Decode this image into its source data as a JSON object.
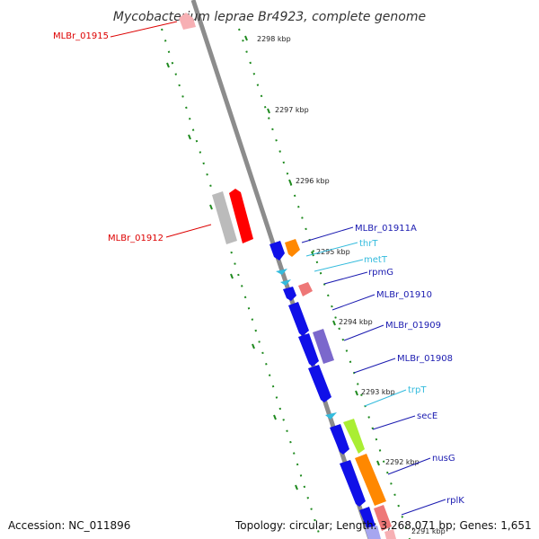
{
  "title": "Mycobacterium leprae Br4923, complete genome",
  "footer": {
    "accession_text": "Accession: NC_011896",
    "summary_text": "Topology: circular; Length: 3,268,071 bp; Genes: 1,651"
  },
  "colors": {
    "backbone": "#8c8c8c",
    "ticks": "#1f8a1f",
    "cds_forward": "#1010e8",
    "label_blue": "#1a1ab0",
    "label_cyan": "#33bbdd",
    "label_red": "#dd0000",
    "rna": "#ff8800",
    "pseudogene": "#ee7777",
    "selected": "#ff0000",
    "neighbor": "#bbbbbb",
    "lilac": "#7b68cc",
    "lime": "#aaee33"
  },
  "kbp_labels": [
    "2298 kbp",
    "2297 kbp",
    "2296 kbp",
    "2295 kbp",
    "2294 kbp",
    "2293 kbp",
    "2292 kbp",
    "2291 kbp"
  ],
  "gene_labels": [
    {
      "name": "MLBr_01915",
      "color": "label_red"
    },
    {
      "name": "MLBr_01912",
      "color": "label_red"
    },
    {
      "name": "MLBr_01911A",
      "color": "label_blue"
    },
    {
      "name": "thrT",
      "color": "label_cyan"
    },
    {
      "name": "metT",
      "color": "label_cyan"
    },
    {
      "name": "rpmG",
      "color": "label_blue"
    },
    {
      "name": "MLBr_01910",
      "color": "label_blue"
    },
    {
      "name": "MLBr_01909",
      "color": "label_blue"
    },
    {
      "name": "MLBr_01908",
      "color": "label_blue"
    },
    {
      "name": "trpT",
      "color": "label_cyan"
    },
    {
      "name": "secE",
      "color": "label_blue"
    },
    {
      "name": "nusG",
      "color": "label_blue"
    },
    {
      "name": "rplK",
      "color": "label_blue"
    }
  ]
}
